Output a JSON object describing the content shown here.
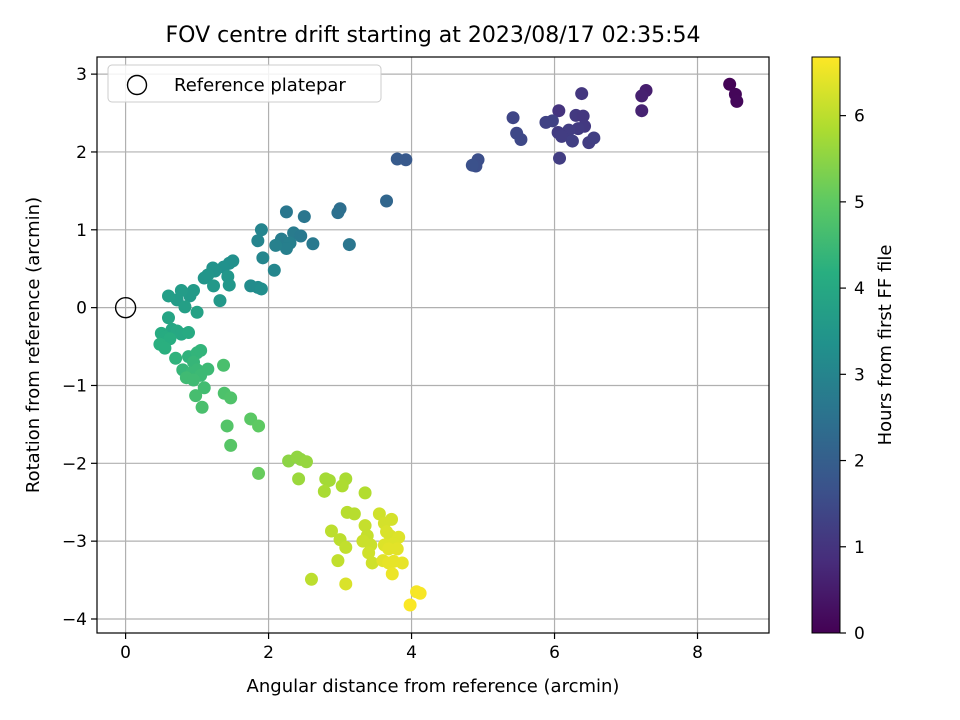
{
  "chart_data": {
    "type": "scatter",
    "title": "FOV centre drift starting at 2023/08/17 02:35:54",
    "xlabel": "Angular distance from reference (arcmin)",
    "ylabel": "Rotation from reference (arcmin)",
    "colorbar_label": "Hours from first FF file",
    "xlim": [
      -0.4,
      9.0
    ],
    "ylim": [
      -4.18,
      3.22
    ],
    "clim": [
      0,
      6.68
    ],
    "x_ticks": [
      0,
      2,
      4,
      6,
      8
    ],
    "x_tick_labels": [
      "0",
      "2",
      "4",
      "6",
      "8"
    ],
    "y_ticks": [
      -4,
      -3,
      -2,
      -1,
      0,
      1,
      2,
      3
    ],
    "y_tick_labels": [
      "−4",
      "−3",
      "−2",
      "−1",
      "0",
      "1",
      "2",
      "3"
    ],
    "colorbar_ticks": [
      0,
      1,
      2,
      3,
      4,
      5,
      6
    ],
    "colorbar_tick_labels": [
      "0",
      "1",
      "2",
      "3",
      "4",
      "5",
      "6"
    ],
    "colormap": "viridis",
    "grid": true,
    "legend": {
      "placement": "top-left",
      "entries": [
        "Reference platepar"
      ]
    },
    "reference_point": {
      "x": 0,
      "y": 0,
      "label": "Reference platepar"
    },
    "points": [
      {
        "x": 8.45,
        "y": 2.87,
        "h": 0.05
      },
      {
        "x": 8.53,
        "y": 2.74,
        "h": 0.1
      },
      {
        "x": 8.55,
        "y": 2.65,
        "h": 0.12
      },
      {
        "x": 7.28,
        "y": 2.79,
        "h": 0.55
      },
      {
        "x": 7.22,
        "y": 2.72,
        "h": 0.6
      },
      {
        "x": 7.22,
        "y": 2.53,
        "h": 0.65
      },
      {
        "x": 6.38,
        "y": 2.75,
        "h": 1.05
      },
      {
        "x": 6.06,
        "y": 2.53,
        "h": 1.0
      },
      {
        "x": 6.3,
        "y": 2.47,
        "h": 1.1
      },
      {
        "x": 6.4,
        "y": 2.46,
        "h": 1.05
      },
      {
        "x": 6.42,
        "y": 2.33,
        "h": 1.1
      },
      {
        "x": 6.33,
        "y": 2.3,
        "h": 1.15
      },
      {
        "x": 6.2,
        "y": 2.28,
        "h": 1.2
      },
      {
        "x": 6.05,
        "y": 2.25,
        "h": 1.15
      },
      {
        "x": 6.1,
        "y": 2.2,
        "h": 1.2
      },
      {
        "x": 6.25,
        "y": 2.14,
        "h": 1.25
      },
      {
        "x": 6.48,
        "y": 2.12,
        "h": 1.2
      },
      {
        "x": 6.55,
        "y": 2.18,
        "h": 1.25
      },
      {
        "x": 6.07,
        "y": 1.92,
        "h": 1.2
      },
      {
        "x": 5.88,
        "y": 2.38,
        "h": 1.3
      },
      {
        "x": 5.97,
        "y": 2.4,
        "h": 1.3
      },
      {
        "x": 5.42,
        "y": 2.44,
        "h": 1.4
      },
      {
        "x": 5.47,
        "y": 2.24,
        "h": 1.45
      },
      {
        "x": 5.53,
        "y": 2.16,
        "h": 1.45
      },
      {
        "x": 4.93,
        "y": 1.9,
        "h": 1.6
      },
      {
        "x": 4.9,
        "y": 1.82,
        "h": 1.6
      },
      {
        "x": 4.85,
        "y": 1.83,
        "h": 1.65
      },
      {
        "x": 3.8,
        "y": 1.91,
        "h": 1.9
      },
      {
        "x": 3.92,
        "y": 1.9,
        "h": 1.85
      },
      {
        "x": 3.65,
        "y": 1.37,
        "h": 2.2
      },
      {
        "x": 3.0,
        "y": 1.27,
        "h": 2.4
      },
      {
        "x": 2.97,
        "y": 1.22,
        "h": 2.45
      },
      {
        "x": 3.13,
        "y": 0.81,
        "h": 2.6
      },
      {
        "x": 2.25,
        "y": 1.23,
        "h": 2.65
      },
      {
        "x": 2.5,
        "y": 1.17,
        "h": 2.6
      },
      {
        "x": 2.35,
        "y": 0.96,
        "h": 2.75
      },
      {
        "x": 2.45,
        "y": 0.92,
        "h": 2.7
      },
      {
        "x": 2.62,
        "y": 0.82,
        "h": 2.7
      },
      {
        "x": 2.18,
        "y": 0.88,
        "h": 2.8
      },
      {
        "x": 2.3,
        "y": 0.83,
        "h": 2.85
      },
      {
        "x": 2.25,
        "y": 0.76,
        "h": 2.85
      },
      {
        "x": 2.1,
        "y": 0.8,
        "h": 2.9
      },
      {
        "x": 1.9,
        "y": 1.0,
        "h": 3.0
      },
      {
        "x": 1.85,
        "y": 0.86,
        "h": 3.0
      },
      {
        "x": 1.92,
        "y": 0.64,
        "h": 3.05
      },
      {
        "x": 2.08,
        "y": 0.48,
        "h": 3.05
      },
      {
        "x": 1.75,
        "y": 0.28,
        "h": 3.2
      },
      {
        "x": 1.85,
        "y": 0.26,
        "h": 3.2
      },
      {
        "x": 1.9,
        "y": 0.24,
        "h": 3.25
      },
      {
        "x": 1.5,
        "y": 0.6,
        "h": 3.3
      },
      {
        "x": 1.45,
        "y": 0.57,
        "h": 3.3
      },
      {
        "x": 1.37,
        "y": 0.52,
        "h": 3.35
      },
      {
        "x": 1.25,
        "y": 0.47,
        "h": 3.4
      },
      {
        "x": 1.22,
        "y": 0.51,
        "h": 3.4
      },
      {
        "x": 1.1,
        "y": 0.38,
        "h": 3.45
      },
      {
        "x": 1.15,
        "y": 0.42,
        "h": 3.45
      },
      {
        "x": 1.43,
        "y": 0.4,
        "h": 3.5
      },
      {
        "x": 1.45,
        "y": 0.29,
        "h": 3.5
      },
      {
        "x": 1.23,
        "y": 0.28,
        "h": 3.55
      },
      {
        "x": 1.32,
        "y": 0.09,
        "h": 3.55
      },
      {
        "x": 0.95,
        "y": 0.22,
        "h": 3.6
      },
      {
        "x": 0.9,
        "y": 0.15,
        "h": 3.6
      },
      {
        "x": 0.78,
        "y": 0.22,
        "h": 3.65
      },
      {
        "x": 0.72,
        "y": 0.1,
        "h": 3.65
      },
      {
        "x": 0.6,
        "y": 0.15,
        "h": 3.7
      },
      {
        "x": 0.83,
        "y": 0.01,
        "h": 3.75
      },
      {
        "x": 1.0,
        "y": -0.06,
        "h": 3.8
      },
      {
        "x": 0.6,
        "y": -0.13,
        "h": 3.9
      },
      {
        "x": 0.65,
        "y": -0.28,
        "h": 3.95
      },
      {
        "x": 0.72,
        "y": -0.3,
        "h": 4.0
      },
      {
        "x": 0.78,
        "y": -0.34,
        "h": 4.0
      },
      {
        "x": 0.88,
        "y": -0.32,
        "h": 4.05
      },
      {
        "x": 0.5,
        "y": -0.33,
        "h": 4.1
      },
      {
        "x": 0.55,
        "y": -0.38,
        "h": 4.1
      },
      {
        "x": 0.62,
        "y": -0.4,
        "h": 4.15
      },
      {
        "x": 0.48,
        "y": -0.47,
        "h": 4.2
      },
      {
        "x": 0.55,
        "y": -0.52,
        "h": 4.2
      },
      {
        "x": 0.7,
        "y": -0.65,
        "h": 4.3
      },
      {
        "x": 0.88,
        "y": -0.63,
        "h": 4.3
      },
      {
        "x": 1.0,
        "y": -0.58,
        "h": 4.35
      },
      {
        "x": 1.05,
        "y": -0.55,
        "h": 4.35
      },
      {
        "x": 0.95,
        "y": -0.7,
        "h": 4.4
      },
      {
        "x": 0.8,
        "y": -0.8,
        "h": 4.4
      },
      {
        "x": 0.92,
        "y": -0.84,
        "h": 4.45
      },
      {
        "x": 1.0,
        "y": -0.8,
        "h": 4.45
      },
      {
        "x": 1.15,
        "y": -0.79,
        "h": 4.5
      },
      {
        "x": 1.05,
        "y": -0.87,
        "h": 4.5
      },
      {
        "x": 0.85,
        "y": -0.9,
        "h": 4.55
      },
      {
        "x": 0.95,
        "y": -0.93,
        "h": 4.55
      },
      {
        "x": 1.1,
        "y": -1.03,
        "h": 4.6
      },
      {
        "x": 0.98,
        "y": -1.13,
        "h": 4.65
      },
      {
        "x": 1.07,
        "y": -1.28,
        "h": 4.7
      },
      {
        "x": 1.37,
        "y": -0.74,
        "h": 4.7
      },
      {
        "x": 1.38,
        "y": -1.1,
        "h": 4.75
      },
      {
        "x": 1.47,
        "y": -1.16,
        "h": 4.8
      },
      {
        "x": 1.42,
        "y": -1.52,
        "h": 4.85
      },
      {
        "x": 1.47,
        "y": -1.77,
        "h": 4.9
      },
      {
        "x": 1.75,
        "y": -1.43,
        "h": 4.95
      },
      {
        "x": 1.86,
        "y": -1.52,
        "h": 5.0
      },
      {
        "x": 1.86,
        "y": -2.13,
        "h": 5.1
      },
      {
        "x": 2.28,
        "y": -1.97,
        "h": 5.5
      },
      {
        "x": 2.4,
        "y": -1.92,
        "h": 5.55
      },
      {
        "x": 2.45,
        "y": -1.95,
        "h": 5.55
      },
      {
        "x": 2.53,
        "y": -1.98,
        "h": 5.6
      },
      {
        "x": 2.42,
        "y": -2.2,
        "h": 5.65
      },
      {
        "x": 2.8,
        "y": -2.2,
        "h": 5.75
      },
      {
        "x": 2.85,
        "y": -2.22,
        "h": 5.75
      },
      {
        "x": 2.78,
        "y": -2.36,
        "h": 5.8
      },
      {
        "x": 3.08,
        "y": -2.2,
        "h": 5.8
      },
      {
        "x": 3.03,
        "y": -2.29,
        "h": 5.85
      },
      {
        "x": 3.35,
        "y": -2.38,
        "h": 5.9
      },
      {
        "x": 3.1,
        "y": -2.63,
        "h": 5.95
      },
      {
        "x": 3.2,
        "y": -2.65,
        "h": 5.95
      },
      {
        "x": 2.88,
        "y": -2.87,
        "h": 6.0
      },
      {
        "x": 3.0,
        "y": -2.98,
        "h": 6.0
      },
      {
        "x": 3.08,
        "y": -3.08,
        "h": 6.05
      },
      {
        "x": 2.97,
        "y": -3.25,
        "h": 6.05
      },
      {
        "x": 3.35,
        "y": -2.8,
        "h": 6.1
      },
      {
        "x": 3.38,
        "y": -2.93,
        "h": 6.1
      },
      {
        "x": 3.32,
        "y": -3.0,
        "h": 6.15
      },
      {
        "x": 3.43,
        "y": -3.05,
        "h": 6.15
      },
      {
        "x": 3.4,
        "y": -3.15,
        "h": 6.2
      },
      {
        "x": 3.45,
        "y": -3.28,
        "h": 6.2
      },
      {
        "x": 3.55,
        "y": -2.65,
        "h": 6.2
      },
      {
        "x": 3.62,
        "y": -2.77,
        "h": 6.25
      },
      {
        "x": 3.72,
        "y": -2.72,
        "h": 6.25
      },
      {
        "x": 3.65,
        "y": -2.88,
        "h": 6.3
      },
      {
        "x": 3.7,
        "y": -2.93,
        "h": 6.3
      },
      {
        "x": 3.82,
        "y": -2.95,
        "h": 6.35
      },
      {
        "x": 3.62,
        "y": -3.05,
        "h": 6.35
      },
      {
        "x": 3.75,
        "y": -3.03,
        "h": 6.35
      },
      {
        "x": 3.68,
        "y": -3.1,
        "h": 6.4
      },
      {
        "x": 3.8,
        "y": -3.1,
        "h": 6.4
      },
      {
        "x": 3.6,
        "y": -3.25,
        "h": 6.4
      },
      {
        "x": 3.68,
        "y": -3.28,
        "h": 6.45
      },
      {
        "x": 3.75,
        "y": -3.26,
        "h": 6.45
      },
      {
        "x": 3.87,
        "y": -3.28,
        "h": 6.45
      },
      {
        "x": 3.73,
        "y": -3.42,
        "h": 6.5
      },
      {
        "x": 2.6,
        "y": -3.49,
        "h": 6.0
      },
      {
        "x": 3.08,
        "y": -3.55,
        "h": 6.3
      },
      {
        "x": 4.07,
        "y": -3.65,
        "h": 6.6
      },
      {
        "x": 4.12,
        "y": -3.67,
        "h": 6.62
      },
      {
        "x": 3.98,
        "y": -3.82,
        "h": 6.65
      }
    ]
  }
}
